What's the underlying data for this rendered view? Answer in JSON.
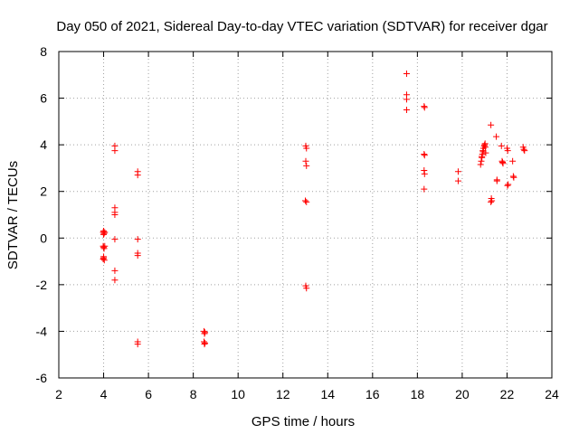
{
  "chart_data": {
    "type": "scatter",
    "title": "Day 050 of 2021, Sidereal Day-to-day VTEC variation (SDTVAR) for receiver dgar",
    "xlabel": "GPS time / hours",
    "ylabel": "SDTVAR / TECUs",
    "xlim": [
      2,
      24
    ],
    "ylim": [
      -6,
      8
    ],
    "xticks": [
      "2",
      "4",
      "6",
      "8",
      "10",
      "12",
      "14",
      "16",
      "18",
      "20",
      "22",
      "24"
    ],
    "yticks": [
      "-6",
      "-4",
      "-2",
      "0",
      "2",
      "4",
      "6",
      "8"
    ],
    "grid": true,
    "marker": "+",
    "color": "#ff0000",
    "series": [
      {
        "name": "SDTVAR",
        "x": [
          3.98,
          4.0,
          4.02,
          4.0,
          4.05,
          3.98,
          4.02,
          4.0,
          4.05,
          4.0,
          3.98,
          4.03,
          4.0,
          4.5,
          4.5,
          4.5,
          4.5,
          4.5,
          4.5,
          4.5,
          4.5,
          5.52,
          5.52,
          5.52,
          5.52,
          5.52,
          5.52,
          5.52,
          8.48,
          8.52,
          8.5,
          8.48,
          8.52,
          8.5,
          13.02,
          13.05,
          13.02,
          13.05,
          13.0,
          13.05,
          13.02,
          13.05,
          17.52,
          17.52,
          17.52,
          17.52,
          18.3,
          18.32,
          18.3,
          18.32,
          18.3,
          18.32,
          18.3,
          19.82,
          19.82,
          20.82,
          20.85,
          20.88,
          20.9,
          20.92,
          20.95,
          20.98,
          21.0,
          21.02,
          21.05,
          20.87,
          20.93,
          21.03,
          21.28,
          21.3,
          21.32,
          21.28,
          21.52,
          21.55,
          21.55,
          21.75,
          21.8,
          21.78,
          21.82,
          22.0,
          22.03,
          22.05,
          22.02,
          22.25,
          22.28,
          22.3,
          22.72,
          22.75,
          22.78
        ],
        "y": [
          0.25,
          0.3,
          0.2,
          0.15,
          0.25,
          -0.35,
          -0.45,
          -0.4,
          -0.35,
          -0.85,
          -0.9,
          -0.95,
          -0.8,
          3.95,
          3.75,
          1.3,
          1.1,
          1.0,
          -0.05,
          -1.4,
          -1.8,
          2.85,
          2.7,
          -0.05,
          -0.65,
          -0.75,
          -4.45,
          -4.55,
          -4.0,
          -4.05,
          -4.1,
          -4.45,
          -4.5,
          -4.55,
          3.95,
          3.85,
          3.3,
          3.1,
          1.6,
          1.55,
          -2.05,
          -2.15,
          7.05,
          6.15,
          5.95,
          5.5,
          5.65,
          5.6,
          3.6,
          3.55,
          2.9,
          2.75,
          2.1,
          2.85,
          2.45,
          3.15,
          3.3,
          3.45,
          3.6,
          3.75,
          3.85,
          3.95,
          4.0,
          4.05,
          3.65,
          3.5,
          3.7,
          3.9,
          4.85,
          1.7,
          1.6,
          1.55,
          4.35,
          2.5,
          2.45,
          3.95,
          3.25,
          3.3,
          3.2,
          3.85,
          3.75,
          2.3,
          2.25,
          3.3,
          2.65,
          2.6,
          3.9,
          3.8,
          3.75
        ]
      }
    ]
  }
}
